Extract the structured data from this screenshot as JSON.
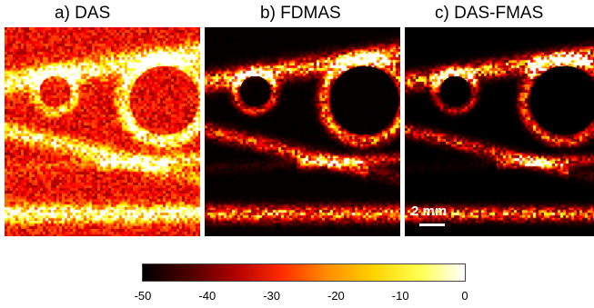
{
  "panels": [
    {
      "title": "a) DAS",
      "contrast": "low"
    },
    {
      "title": "b) FDMAS",
      "contrast": "high"
    },
    {
      "title": "c) DAS-FMAS",
      "contrast": "highest"
    }
  ],
  "scale_bar": {
    "label": "2 mm"
  },
  "colorbar": {
    "colormap": "hot",
    "ticks": [
      "-50",
      "-40",
      "-30",
      "-20",
      "-10",
      "0"
    ],
    "range": [
      -50,
      0
    ],
    "colors": [
      "#000000",
      "#4a0000",
      "#b00000",
      "#ff2a00",
      "#ff8c00",
      "#ffd200",
      "#ffff4d",
      "#ffffff"
    ]
  }
}
